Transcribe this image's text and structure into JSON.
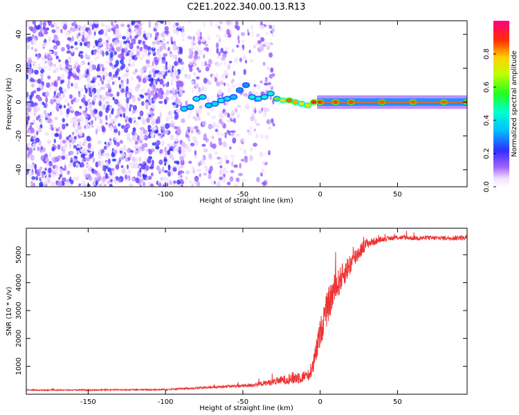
{
  "figure_title": "C2E1.2022.340.00.13.R13",
  "chart_data": [
    {
      "type": "heatmap",
      "xlabel": "Height of straight line (km)",
      "ylabel": "Frequency (Hz)",
      "xlim": [
        -190,
        95
      ],
      "ylim": [
        -50,
        48
      ],
      "x_ticks": [
        -150,
        -100,
        -50,
        0,
        50
      ],
      "y_ticks": [
        -40,
        -20,
        0,
        20,
        40
      ],
      "colorbar": {
        "label": "Normalized spectral amplitude",
        "ticks": [
          0.0,
          0.2,
          0.4,
          0.6,
          0.8
        ],
        "range": [
          0,
          1
        ]
      },
      "signal_track": {
        "x": [
          -88,
          -84,
          -80,
          -76,
          -72,
          -68,
          -64,
          -60,
          -56,
          -52,
          -48,
          -44,
          -40,
          -36,
          -32,
          -28,
          -24,
          -20,
          -16,
          -12,
          -8,
          -4,
          0,
          10,
          20,
          40,
          60,
          80,
          95
        ],
        "frequency": [
          -4,
          -3,
          2,
          3,
          -2,
          -1,
          1,
          2,
          3,
          7,
          10,
          3,
          2,
          3,
          5,
          2,
          1,
          1,
          0,
          -1,
          -2,
          0,
          0,
          0,
          0,
          0,
          0,
          0,
          0
        ],
        "amplitude": [
          0.4,
          0.35,
          0.45,
          0.4,
          0.35,
          0.4,
          0.45,
          0.4,
          0.35,
          0.3,
          0.3,
          0.45,
          0.45,
          0.45,
          0.45,
          0.6,
          0.75,
          0.85,
          0.8,
          0.7,
          0.75,
          0.9,
          0.9,
          0.9,
          0.88,
          0.86,
          0.85,
          0.85,
          0.85
        ]
      }
    },
    {
      "type": "line",
      "xlabel": "Height of straight line (km)",
      "ylabel": "SNR (10 * v/v)",
      "xlim": [
        -190,
        95
      ],
      "ylim": [
        0,
        5950
      ],
      "x_ticks": [
        -150,
        -100,
        -50,
        0,
        50
      ],
      "y_ticks": [
        1000,
        2000,
        3000,
        4000,
        5000
      ],
      "series_color": "#ee3333",
      "x": [
        -190,
        -170,
        -150,
        -130,
        -110,
        -100,
        -90,
        -80,
        -70,
        -60,
        -50,
        -45,
        -40,
        -35,
        -30,
        -25,
        -20,
        -15,
        -10,
        -7,
        -5,
        -3,
        0,
        3,
        6,
        9,
        12,
        15,
        20,
        25,
        30,
        40,
        50,
        60,
        70,
        80,
        90,
        95
      ],
      "values": [
        150,
        150,
        150,
        160,
        160,
        170,
        200,
        220,
        250,
        280,
        300,
        320,
        360,
        400,
        450,
        500,
        550,
        600,
        650,
        700,
        900,
        1400,
        2200,
        2800,
        3300,
        3700,
        4000,
        4300,
        4700,
        5100,
        5400,
        5550,
        5620,
        5600,
        5600,
        5600,
        5610,
        5600
      ],
      "noise_amplitude": [
        20,
        20,
        20,
        20,
        25,
        25,
        30,
        35,
        40,
        50,
        60,
        70,
        80,
        100,
        120,
        150,
        200,
        250,
        200,
        200,
        300,
        400,
        500,
        600,
        600,
        600,
        500,
        450,
        400,
        300,
        180,
        90,
        80,
        80,
        80,
        80,
        90,
        90
      ]
    }
  ]
}
